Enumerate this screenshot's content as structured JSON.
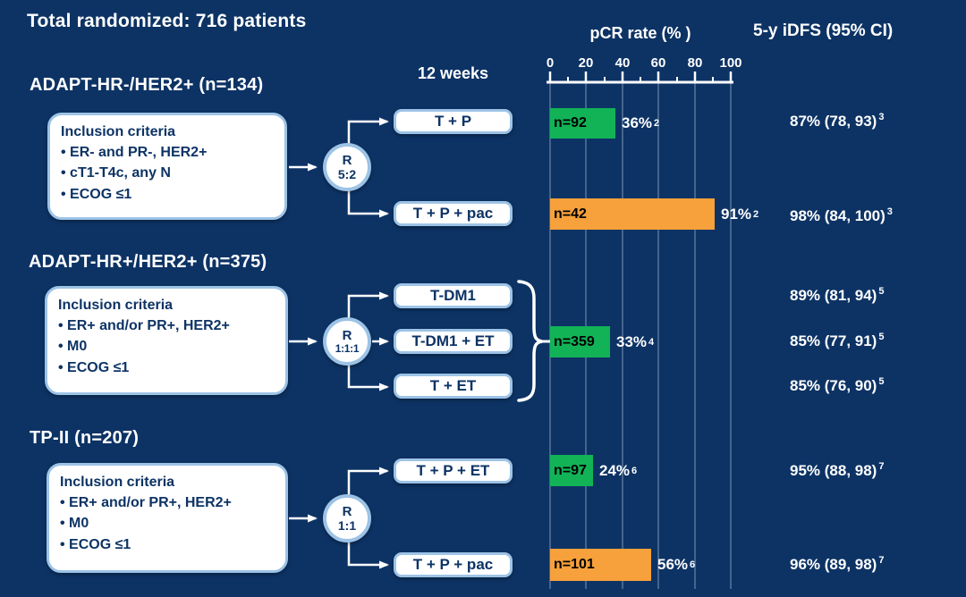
{
  "title": "Total randomized: 716 patients",
  "headers": {
    "timepoint": "12 weeks",
    "pcr": "pCR rate (% )",
    "idfs": "5-y iDFS (95% CI)"
  },
  "axis_ticks": [
    "0",
    "20",
    "40",
    "60",
    "80",
    "100"
  ],
  "sections": [
    {
      "header": "ADAPT-HR-/HER2+ (n=134)",
      "inclusion_title": "Inclusion criteria",
      "criteria": [
        "• ER- and PR-, HER2+",
        "• cT1-T4c, any N",
        "• ECOG ≤1"
      ],
      "rand_letter": "R",
      "rand_ratio": "5:2",
      "arms": [
        "T + P",
        "T + P + pac"
      ]
    },
    {
      "header": "ADAPT-HR+/HER2+ (n=375)",
      "inclusion_title": "Inclusion criteria",
      "criteria": [
        "• ER+ and/or PR+, HER2+",
        "• M0",
        "• ECOG ≤1"
      ],
      "rand_letter": "R",
      "rand_ratio": "1:1:1",
      "arms": [
        "T-DM1",
        "T-DM1 + ET",
        "T + ET"
      ]
    },
    {
      "header": "TP-II (n=207)",
      "inclusion_title": "Inclusion criteria",
      "criteria": [
        "• ER+ and/or PR+, HER2+",
        "• M0",
        "• ECOG ≤1"
      ],
      "rand_letter": "R",
      "rand_ratio": "1:1",
      "arms": [
        "T + P + ET",
        "T + P + pac"
      ]
    }
  ],
  "bars": [
    {
      "n": "n=92",
      "pct": "36%",
      "sup": "2"
    },
    {
      "n": "n=42",
      "pct": "91%",
      "sup": "2"
    },
    {
      "n": "n=359",
      "pct": "33%",
      "sup": "4"
    },
    {
      "n": "n=97",
      "pct": "24%",
      "sup": "6"
    },
    {
      "n": "n=101",
      "pct": "56%",
      "sup": "6"
    }
  ],
  "idfs": [
    {
      "val": "87% (78, 93)",
      "sup": "3"
    },
    {
      "val": "98% (84, 100)",
      "sup": "3"
    },
    {
      "val": "89% (81, 94)",
      "sup": "5"
    },
    {
      "val": "85% (77, 91)",
      "sup": "5"
    },
    {
      "val": "85% (76, 90)",
      "sup": "5"
    },
    {
      "val": "95% (88, 98)",
      "sup": "7"
    },
    {
      "val": "96% (89, 98)",
      "sup": "7"
    }
  ],
  "colors": {
    "background": "#0d3365",
    "green": "#12b357",
    "orange": "#f6a13b",
    "box_border": "#9dc3e6",
    "dark_text": "#0d3365",
    "gridline": "rgba(220,228,240,0.55)"
  },
  "chart_data": {
    "type": "bar",
    "orientation": "horizontal",
    "title": "pCR rate (%)",
    "xlabel": "pCR rate (%)",
    "xlim": [
      0,
      100
    ],
    "x_ticks": [
      0,
      20,
      40,
      60,
      80,
      100
    ],
    "grid": true,
    "series": [
      {
        "trial": "ADAPT-HR-/HER2+ (n=134)",
        "arm": "T + P",
        "n": 92,
        "pcr_rate_pct": 36,
        "bar_color": "green",
        "idfs_5y": "87% (78, 93)"
      },
      {
        "trial": "ADAPT-HR-/HER2+ (n=134)",
        "arm": "T + P + pac",
        "n": 42,
        "pcr_rate_pct": 91,
        "bar_color": "orange",
        "idfs_5y": "98% (84, 100)"
      },
      {
        "trial": "ADAPT-HR+/HER2+ (n=375)",
        "arm": "T-DM1 / T-DM1 + ET / T + ET (pooled)",
        "n": 359,
        "pcr_rate_pct": 33,
        "bar_color": "green",
        "idfs_5y": [
          "89% (81, 94)",
          "85% (77, 91)",
          "85% (76, 90)"
        ]
      },
      {
        "trial": "TP-II (n=207)",
        "arm": "T + P + ET",
        "n": 97,
        "pcr_rate_pct": 24,
        "bar_color": "green",
        "idfs_5y": "95% (88, 98)"
      },
      {
        "trial": "TP-II (n=207)",
        "arm": "T + P + pac",
        "n": 101,
        "pcr_rate_pct": 56,
        "bar_color": "orange",
        "idfs_5y": "96% (89, 98)"
      }
    ]
  }
}
